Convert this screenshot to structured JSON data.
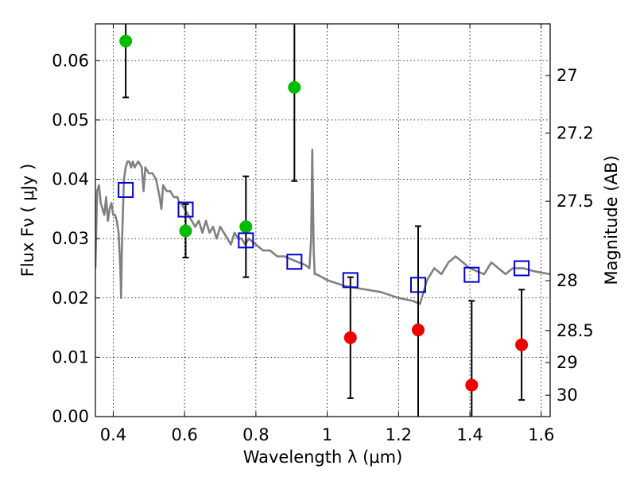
{
  "chart_data": {
    "type": "scatter",
    "title": "",
    "xlabel": "Wavelength  λ (μm)",
    "ylabel": "Flux  Fν  ( μJy )",
    "ylabel_right": "Magnitude (AB)",
    "xlim": [
      0.35,
      1.625
    ],
    "ylim": [
      0.0,
      0.0662
    ],
    "grid": true,
    "legend": "none",
    "x_ticks": [
      0.4,
      0.6,
      0.8,
      1.0,
      1.2,
      1.4,
      1.6
    ],
    "x_tick_labels": [
      "0.4",
      "0.6",
      "0.8",
      "1",
      "1.2",
      "1.4",
      "1.6"
    ],
    "y_ticks": [
      0.0,
      0.01,
      0.02,
      0.03,
      0.04,
      0.05,
      0.06
    ],
    "y_tick_labels": [
      "0.00",
      "0.01",
      "0.02",
      "0.03",
      "0.04",
      "0.05",
      "0.06"
    ],
    "right_ticks": [
      {
        "label": "27",
        "flux": 0.0575
      },
      {
        "label": "27.2",
        "flux": 0.0478
      },
      {
        "label": "27.5",
        "flux": 0.0363
      },
      {
        "label": "28",
        "flux": 0.0229
      },
      {
        "label": "28.5",
        "flux": 0.0145
      },
      {
        "label": "29",
        "flux": 0.0091
      },
      {
        "label": "30",
        "flux": 0.0036
      }
    ],
    "series": [
      {
        "kind": "line",
        "color": "#808080",
        "points": [
          [
            0.35,
            0.025
          ],
          [
            0.355,
            0.038
          ],
          [
            0.36,
            0.039
          ],
          [
            0.365,
            0.036
          ],
          [
            0.37,
            0.035
          ],
          [
            0.375,
            0.034
          ],
          [
            0.38,
            0.037
          ],
          [
            0.385,
            0.033
          ],
          [
            0.39,
            0.035
          ],
          [
            0.395,
            0.036
          ],
          [
            0.4,
            0.034
          ],
          [
            0.405,
            0.034
          ],
          [
            0.41,
            0.033
          ],
          [
            0.415,
            0.031
          ],
          [
            0.42,
            0.025
          ],
          [
            0.422,
            0.02
          ],
          [
            0.425,
            0.03
          ],
          [
            0.43,
            0.04
          ],
          [
            0.435,
            0.042
          ],
          [
            0.44,
            0.043
          ],
          [
            0.445,
            0.043
          ],
          [
            0.45,
            0.042
          ],
          [
            0.455,
            0.043
          ],
          [
            0.46,
            0.042
          ],
          [
            0.47,
            0.043
          ],
          [
            0.48,
            0.042
          ],
          [
            0.485,
            0.038
          ],
          [
            0.49,
            0.042
          ],
          [
            0.5,
            0.041
          ],
          [
            0.51,
            0.041
          ],
          [
            0.52,
            0.04
          ],
          [
            0.53,
            0.037
          ],
          [
            0.535,
            0.035
          ],
          [
            0.54,
            0.039
          ],
          [
            0.55,
            0.038
          ],
          [
            0.56,
            0.038
          ],
          [
            0.57,
            0.037
          ],
          [
            0.58,
            0.037
          ],
          [
            0.585,
            0.036
          ],
          [
            0.59,
            0.036
          ],
          [
            0.6,
            0.035
          ],
          [
            0.61,
            0.034
          ],
          [
            0.62,
            0.033
          ],
          [
            0.63,
            0.032
          ],
          [
            0.64,
            0.033
          ],
          [
            0.65,
            0.031
          ],
          [
            0.66,
            0.033
          ],
          [
            0.67,
            0.031
          ],
          [
            0.68,
            0.032
          ],
          [
            0.69,
            0.03
          ],
          [
            0.7,
            0.032
          ],
          [
            0.71,
            0.031
          ],
          [
            0.72,
            0.03
          ],
          [
            0.73,
            0.029
          ],
          [
            0.74,
            0.031
          ],
          [
            0.75,
            0.03
          ],
          [
            0.76,
            0.03
          ],
          [
            0.77,
            0.029
          ],
          [
            0.78,
            0.03
          ],
          [
            0.8,
            0.029
          ],
          [
            0.82,
            0.028
          ],
          [
            0.84,
            0.028
          ],
          [
            0.86,
            0.027
          ],
          [
            0.88,
            0.027
          ],
          [
            0.9,
            0.0265
          ],
          [
            0.92,
            0.026
          ],
          [
            0.94,
            0.0255
          ],
          [
            0.95,
            0.025
          ],
          [
            0.955,
            0.03
          ],
          [
            0.958,
            0.045
          ],
          [
            0.962,
            0.028
          ],
          [
            0.965,
            0.024
          ],
          [
            0.97,
            0.024
          ],
          [
            1.0,
            0.023
          ],
          [
            1.05,
            0.022
          ],
          [
            1.1,
            0.0215
          ],
          [
            1.15,
            0.021
          ],
          [
            1.2,
            0.02
          ],
          [
            1.24,
            0.0195
          ],
          [
            1.26,
            0.019
          ],
          [
            1.28,
            0.023
          ],
          [
            1.3,
            0.025
          ],
          [
            1.32,
            0.024
          ],
          [
            1.34,
            0.026
          ],
          [
            1.36,
            0.027
          ],
          [
            1.38,
            0.026
          ],
          [
            1.4,
            0.025
          ],
          [
            1.42,
            0.0245
          ],
          [
            1.44,
            0.024
          ],
          [
            1.46,
            0.026
          ],
          [
            1.48,
            0.025
          ],
          [
            1.5,
            0.024
          ],
          [
            1.52,
            0.025
          ],
          [
            1.55,
            0.025
          ],
          [
            1.58,
            0.0245
          ],
          [
            1.625,
            0.024
          ]
        ]
      },
      {
        "kind": "points",
        "marker": "circle",
        "color": "#00bb00",
        "points": [
          {
            "x": 0.435,
            "y": 0.0633,
            "err": 0.0095
          },
          {
            "x": 0.603,
            "y": 0.0313,
            "err": 0.0045
          },
          {
            "x": 0.772,
            "y": 0.032,
            "err": 0.0085
          },
          {
            "x": 0.908,
            "y": 0.0555,
            "err": 0.0158
          }
        ]
      },
      {
        "kind": "points",
        "marker": "circle",
        "color": "#ee0000",
        "points": [
          {
            "x": 1.065,
            "y": 0.0133,
            "err": 0.0102
          },
          {
            "x": 1.255,
            "y": 0.0146,
            "err": 0.0175
          },
          {
            "x": 1.405,
            "y": 0.0053,
            "err": 0.0142
          },
          {
            "x": 1.545,
            "y": 0.0121,
            "err": 0.0093
          }
        ]
      },
      {
        "kind": "points",
        "marker": "square",
        "color": "#0000cc",
        "points": [
          {
            "x": 0.435,
            "y": 0.0382
          },
          {
            "x": 0.603,
            "y": 0.0349
          },
          {
            "x": 0.772,
            "y": 0.0297
          },
          {
            "x": 0.908,
            "y": 0.0261
          },
          {
            "x": 1.065,
            "y": 0.023
          },
          {
            "x": 1.255,
            "y": 0.0222
          },
          {
            "x": 1.405,
            "y": 0.0239
          },
          {
            "x": 1.545,
            "y": 0.025
          }
        ]
      }
    ]
  }
}
